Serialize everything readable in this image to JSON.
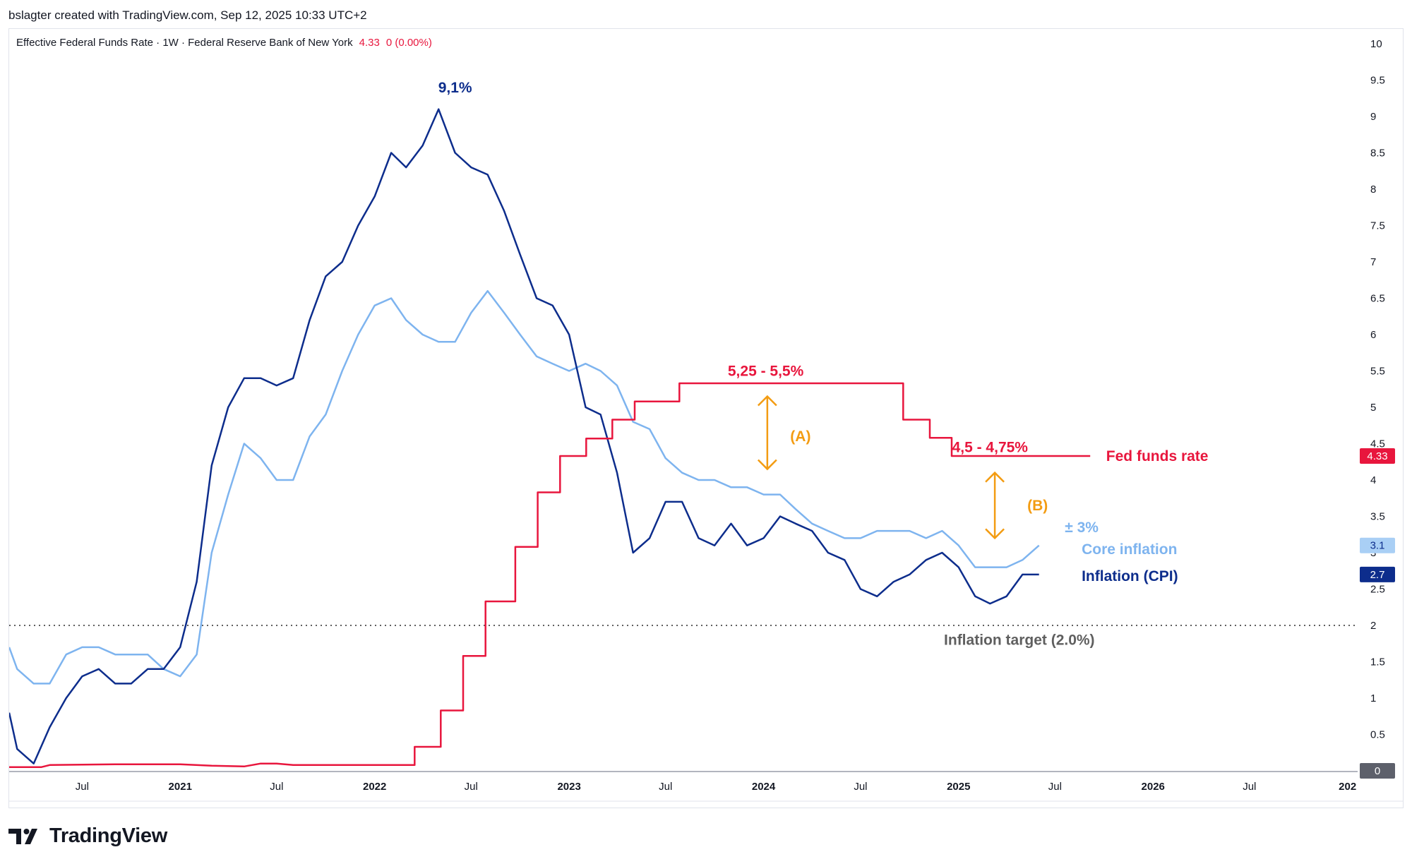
{
  "header": {
    "author_line": "bslagter created with TradingView.com, Sep 12, 2025 10:33 UTC+2",
    "symbol_title": "Effective Federal Funds Rate · 1W · Federal Reserve Bank of New York",
    "last_value": "4.33",
    "change": "0 (0.00%)"
  },
  "footer": {
    "brand": "TradingView"
  },
  "chart_data": {
    "type": "line",
    "x_axis": {
      "range": [
        "2020-02-15",
        "2027-01-20"
      ],
      "ticks": [
        {
          "label": "Jul",
          "date": "2020-07-01",
          "bold": false
        },
        {
          "label": "2021",
          "date": "2021-01-01",
          "bold": true
        },
        {
          "label": "Jul",
          "date": "2021-07-01",
          "bold": false
        },
        {
          "label": "2022",
          "date": "2022-01-01",
          "bold": true
        },
        {
          "label": "Jul",
          "date": "2022-07-01",
          "bold": false
        },
        {
          "label": "2023",
          "date": "2023-01-01",
          "bold": true
        },
        {
          "label": "Jul",
          "date": "2023-07-01",
          "bold": false
        },
        {
          "label": "2024",
          "date": "2024-01-01",
          "bold": true
        },
        {
          "label": "Jul",
          "date": "2024-07-01",
          "bold": false
        },
        {
          "label": "2025",
          "date": "2025-01-01",
          "bold": true
        },
        {
          "label": "Jul",
          "date": "2025-07-01",
          "bold": false
        },
        {
          "label": "2026",
          "date": "2026-01-01",
          "bold": true
        },
        {
          "label": "Jul",
          "date": "2026-07-01",
          "bold": false
        },
        {
          "label": "202",
          "date": "2027-01-01",
          "bold": true
        }
      ]
    },
    "y_axis": {
      "range": [
        0,
        10
      ],
      "position": "right",
      "ticks": [
        "0.5",
        "1",
        "1.5",
        "2",
        "2.5",
        "3",
        "3.5",
        "4",
        "4.5",
        "5",
        "5.5",
        "6",
        "6.5",
        "7",
        "7.5",
        "8",
        "8.5",
        "9",
        "9.5",
        "10"
      ]
    },
    "series": [
      {
        "name": "Inflation (CPI)",
        "color": "#0d2d8c",
        "last_value": "2.7",
        "points": [
          [
            "2020-02-15",
            0.8
          ],
          [
            "2020-03-01",
            0.3
          ],
          [
            "2020-04-01",
            0.1
          ],
          [
            "2020-05-01",
            0.6
          ],
          [
            "2020-06-01",
            1.0
          ],
          [
            "2020-07-01",
            1.3
          ],
          [
            "2020-08-01",
            1.4
          ],
          [
            "2020-09-01",
            1.2
          ],
          [
            "2020-10-01",
            1.2
          ],
          [
            "2020-11-01",
            1.4
          ],
          [
            "2020-12-01",
            1.4
          ],
          [
            "2021-01-01",
            1.7
          ],
          [
            "2021-02-01",
            2.6
          ],
          [
            "2021-03-01",
            4.2
          ],
          [
            "2021-04-01",
            5.0
          ],
          [
            "2021-05-01",
            5.4
          ],
          [
            "2021-06-01",
            5.4
          ],
          [
            "2021-07-01",
            5.3
          ],
          [
            "2021-08-01",
            5.4
          ],
          [
            "2021-09-01",
            6.2
          ],
          [
            "2021-10-01",
            6.8
          ],
          [
            "2021-11-01",
            7.0
          ],
          [
            "2021-12-01",
            7.5
          ],
          [
            "2022-01-01",
            7.9
          ],
          [
            "2022-02-01",
            8.5
          ],
          [
            "2022-03-01",
            8.3
          ],
          [
            "2022-04-01",
            8.6
          ],
          [
            "2022-05-01",
            9.1
          ],
          [
            "2022-06-01",
            8.5
          ],
          [
            "2022-07-01",
            8.3
          ],
          [
            "2022-08-01",
            8.2
          ],
          [
            "2022-09-01",
            7.7
          ],
          [
            "2022-10-01",
            7.1
          ],
          [
            "2022-11-01",
            6.5
          ],
          [
            "2022-12-01",
            6.4
          ],
          [
            "2023-01-01",
            6.0
          ],
          [
            "2023-02-01",
            5.0
          ],
          [
            "2023-03-01",
            4.9
          ],
          [
            "2023-04-01",
            4.1
          ],
          [
            "2023-05-01",
            3.0
          ],
          [
            "2023-06-01",
            3.2
          ],
          [
            "2023-07-01",
            3.7
          ],
          [
            "2023-08-01",
            3.7
          ],
          [
            "2023-09-01",
            3.2
          ],
          [
            "2023-10-01",
            3.1
          ],
          [
            "2023-11-01",
            3.4
          ],
          [
            "2023-12-01",
            3.1
          ],
          [
            "2024-01-01",
            3.2
          ],
          [
            "2024-02-01",
            3.5
          ],
          [
            "2024-03-01",
            3.4
          ],
          [
            "2024-04-01",
            3.3
          ],
          [
            "2024-05-01",
            3.0
          ],
          [
            "2024-06-01",
            2.9
          ],
          [
            "2024-07-01",
            2.5
          ],
          [
            "2024-08-01",
            2.4
          ],
          [
            "2024-09-01",
            2.6
          ],
          [
            "2024-10-01",
            2.7
          ],
          [
            "2024-11-01",
            2.9
          ],
          [
            "2024-12-01",
            3.0
          ],
          [
            "2025-01-01",
            2.8
          ],
          [
            "2025-02-01",
            2.4
          ],
          [
            "2025-03-01",
            2.3
          ],
          [
            "2025-04-01",
            2.4
          ],
          [
            "2025-05-01",
            2.7
          ],
          [
            "2025-06-01",
            2.7
          ]
        ]
      },
      {
        "name": "Core inflation",
        "color": "#7eb4ef",
        "last_value": "3.1",
        "points": [
          [
            "2020-02-15",
            1.7
          ],
          [
            "2020-03-01",
            1.4
          ],
          [
            "2020-04-01",
            1.2
          ],
          [
            "2020-05-01",
            1.2
          ],
          [
            "2020-06-01",
            1.6
          ],
          [
            "2020-07-01",
            1.7
          ],
          [
            "2020-08-01",
            1.7
          ],
          [
            "2020-09-01",
            1.6
          ],
          [
            "2020-10-01",
            1.6
          ],
          [
            "2020-11-01",
            1.6
          ],
          [
            "2020-12-01",
            1.4
          ],
          [
            "2021-01-01",
            1.3
          ],
          [
            "2021-02-01",
            1.6
          ],
          [
            "2021-03-01",
            3.0
          ],
          [
            "2021-04-01",
            3.8
          ],
          [
            "2021-05-01",
            4.5
          ],
          [
            "2021-06-01",
            4.3
          ],
          [
            "2021-07-01",
            4.0
          ],
          [
            "2021-08-01",
            4.0
          ],
          [
            "2021-09-01",
            4.6
          ],
          [
            "2021-10-01",
            4.9
          ],
          [
            "2021-11-01",
            5.5
          ],
          [
            "2021-12-01",
            6.0
          ],
          [
            "2022-01-01",
            6.4
          ],
          [
            "2022-02-01",
            6.5
          ],
          [
            "2022-03-01",
            6.2
          ],
          [
            "2022-04-01",
            6.0
          ],
          [
            "2022-05-01",
            5.9
          ],
          [
            "2022-06-01",
            5.9
          ],
          [
            "2022-07-01",
            6.3
          ],
          [
            "2022-08-01",
            6.6
          ],
          [
            "2022-09-01",
            6.3
          ],
          [
            "2022-10-01",
            6.0
          ],
          [
            "2022-11-01",
            5.7
          ],
          [
            "2022-12-01",
            5.6
          ],
          [
            "2023-01-01",
            5.5
          ],
          [
            "2023-02-01",
            5.6
          ],
          [
            "2023-03-01",
            5.5
          ],
          [
            "2023-04-01",
            5.3
          ],
          [
            "2023-05-01",
            4.8
          ],
          [
            "2023-06-01",
            4.7
          ],
          [
            "2023-07-01",
            4.3
          ],
          [
            "2023-08-01",
            4.1
          ],
          [
            "2023-09-01",
            4.0
          ],
          [
            "2023-10-01",
            4.0
          ],
          [
            "2023-11-01",
            3.9
          ],
          [
            "2023-12-01",
            3.9
          ],
          [
            "2024-01-01",
            3.8
          ],
          [
            "2024-02-01",
            3.8
          ],
          [
            "2024-03-01",
            3.6
          ],
          [
            "2024-04-01",
            3.4
          ],
          [
            "2024-05-01",
            3.3
          ],
          [
            "2024-06-01",
            3.2
          ],
          [
            "2024-07-01",
            3.2
          ],
          [
            "2024-08-01",
            3.3
          ],
          [
            "2024-09-01",
            3.3
          ],
          [
            "2024-10-01",
            3.3
          ],
          [
            "2024-11-01",
            3.2
          ],
          [
            "2024-12-01",
            3.3
          ],
          [
            "2025-01-01",
            3.1
          ],
          [
            "2025-02-01",
            2.8
          ],
          [
            "2025-03-01",
            2.8
          ],
          [
            "2025-04-01",
            2.8
          ],
          [
            "2025-05-01",
            2.9
          ],
          [
            "2025-06-01",
            3.1
          ]
        ]
      },
      {
        "name": "Effective Federal Funds Rate",
        "color": "#e8163d",
        "step": true,
        "last_value": "4.33",
        "points": [
          [
            "2020-02-15",
            0.05
          ],
          [
            "2020-04-15",
            0.05
          ],
          [
            "2020-05-01",
            0.08
          ],
          [
            "2020-09-01",
            0.09
          ],
          [
            "2021-01-01",
            0.09
          ],
          [
            "2021-03-01",
            0.07
          ],
          [
            "2021-05-01",
            0.06
          ],
          [
            "2021-06-01",
            0.1
          ],
          [
            "2021-07-01",
            0.1
          ],
          [
            "2021-08-01",
            0.08
          ],
          [
            "2022-03-17",
            0.08
          ],
          [
            "2022-03-17",
            0.33
          ],
          [
            "2022-05-05",
            0.33
          ],
          [
            "2022-05-05",
            0.83
          ],
          [
            "2022-06-16",
            0.83
          ],
          [
            "2022-06-16",
            1.58
          ],
          [
            "2022-07-28",
            1.58
          ],
          [
            "2022-07-28",
            2.33
          ],
          [
            "2022-09-22",
            2.33
          ],
          [
            "2022-09-22",
            3.08
          ],
          [
            "2022-11-03",
            3.08
          ],
          [
            "2022-11-03",
            3.83
          ],
          [
            "2022-12-15",
            3.83
          ],
          [
            "2022-12-15",
            4.33
          ],
          [
            "2023-02-02",
            4.33
          ],
          [
            "2023-02-02",
            4.57
          ],
          [
            "2023-03-23",
            4.57
          ],
          [
            "2023-03-23",
            4.83
          ],
          [
            "2023-05-04",
            4.83
          ],
          [
            "2023-05-04",
            5.08
          ],
          [
            "2023-07-27",
            5.08
          ],
          [
            "2023-07-27",
            5.33
          ],
          [
            "2024-09-19",
            5.33
          ],
          [
            "2024-09-19",
            4.83
          ],
          [
            "2024-11-08",
            4.83
          ],
          [
            "2024-11-08",
            4.58
          ],
          [
            "2024-12-19",
            4.58
          ],
          [
            "2024-12-19",
            4.33
          ],
          [
            "2025-09-05",
            4.33
          ]
        ]
      }
    ],
    "reference_lines": [
      {
        "label": "Inflation target (2.0%)",
        "y": 2.0,
        "style": "dotted",
        "color": "#5f5f5f"
      }
    ],
    "annotations": [
      {
        "id": "cpi-peak",
        "text": "9,1%",
        "color": "#0d2d8c",
        "date": "2022-06-01",
        "y": 9.4
      },
      {
        "id": "plateau-high",
        "text": "5,25 - 5,5%",
        "color": "#e8163d",
        "date": "2024-01-05",
        "y": 5.5
      },
      {
        "id": "plateau-2025",
        "text": "4,5 - 4,75%",
        "color": "#e8163d",
        "date": "2025-03-01",
        "y": 4.45
      },
      {
        "id": "fed-label",
        "text": "Fed funds rate",
        "color": "#e8163d",
        "date": "2025-10-05",
        "y": 4.33
      },
      {
        "id": "core-approx",
        "text": "± 3%",
        "color": "#7eb4ef",
        "date": "2025-08-20",
        "y": 3.35
      },
      {
        "id": "core-label",
        "text": "Core inflation",
        "color": "#7eb4ef",
        "date": "2025-08-20",
        "y": 3.05
      },
      {
        "id": "cpi-label",
        "text": "Inflation (CPI)",
        "color": "#0d2d8c",
        "date": "2025-08-20",
        "y": 2.68
      },
      {
        "id": "gap-a",
        "text": "(A)",
        "color": "#f39c12",
        "date": "2024-02-20",
        "y": 4.6
      },
      {
        "id": "gap-b",
        "text": "(B)",
        "color": "#f39c12",
        "date": "2025-05-10",
        "y": 3.65
      },
      {
        "id": "target-label",
        "text": "Inflation target (2.0%)",
        "color": "#5f5f5f",
        "date": "2025-04-25",
        "y": 1.8
      }
    ],
    "range_arrows": [
      {
        "id": "arrow-a",
        "date": "2024-01-08",
        "y_top": 5.15,
        "y_bottom": 4.15,
        "color": "#f39c12"
      },
      {
        "id": "arrow-b",
        "date": "2025-03-10",
        "y_top": 4.1,
        "y_bottom": 3.2,
        "color": "#f39c12"
      }
    ],
    "price_tags": [
      {
        "text": "4.33",
        "y": 4.33,
        "bg": "#e8163d",
        "fg": "#ffffff"
      },
      {
        "text": "3.1",
        "y": 3.1,
        "bg": "#a9cff5",
        "fg": "#0d2d8c"
      },
      {
        "text": "2.7",
        "y": 2.7,
        "bg": "#0d2d8c",
        "fg": "#ffffff"
      },
      {
        "text": "0",
        "y": 0,
        "bg": "#5d606b",
        "fg": "#ffffff"
      }
    ],
    "grid": false,
    "legend": "top-left"
  }
}
